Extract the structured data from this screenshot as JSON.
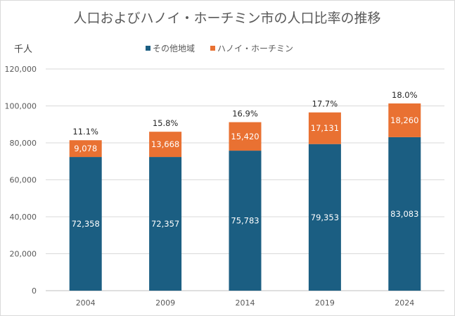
{
  "chart_data": {
    "type": "bar",
    "stacked": true,
    "title": "人口およびハノイ・ホーチミン市の人口比率の推移",
    "ylabel": "千人",
    "xlabel": "",
    "ylim": [
      0,
      120000
    ],
    "yticks": [
      0,
      20000,
      40000,
      60000,
      80000,
      100000,
      120000
    ],
    "ytick_labels": [
      "0",
      "20,000",
      "40,000",
      "60,000",
      "80,000",
      "100,000",
      "120,000"
    ],
    "grid": true,
    "legend_position": "top",
    "categories": [
      "2004",
      "2009",
      "2014",
      "2019",
      "2024"
    ],
    "series": [
      {
        "name": "その他地域",
        "color": "#1b5e82",
        "values": [
          72358,
          72357,
          75783,
          79353,
          83083
        ],
        "labels": [
          "72,358",
          "72,357",
          "75,783",
          "79,353",
          "83,083"
        ]
      },
      {
        "name": "ハノイ・ホーチミン",
        "color": "#e97132",
        "values": [
          9078,
          13668,
          15420,
          17131,
          18260
        ],
        "labels": [
          "9,078",
          "13,668",
          "15,420",
          "17,131",
          "18,260"
        ]
      }
    ],
    "annotations": [
      "11.1%",
      "15.8%",
      "16.9%",
      "17.7%",
      "18.0%"
    ]
  }
}
